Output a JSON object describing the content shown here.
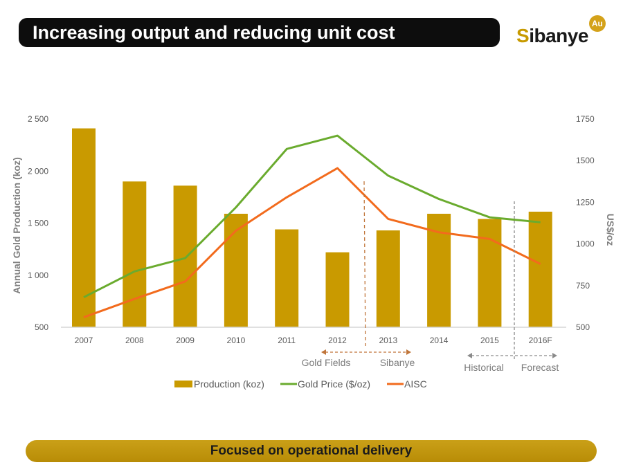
{
  "header": {
    "title": "Increasing output and reducing unit cost"
  },
  "logo": {
    "text": "Sibanye",
    "badge": "Au"
  },
  "footer": {
    "text": "Focused on operational delivery"
  },
  "colors": {
    "production": "#c99a00",
    "gold_price": "#6aab2e",
    "aisc": "#f26b1d",
    "title_bg": "#0d0d0d",
    "footer_bg": "#c19510"
  },
  "chart_data": {
    "type": "bar+line",
    "categories": [
      "2007",
      "2008",
      "2009",
      "2010",
      "2011",
      "2012",
      "2013",
      "2014",
      "2015",
      "2016F"
    ],
    "ylabel": "Annual Gold Production (koz)",
    "y2label": "US$/oz",
    "ylim": [
      500,
      2500
    ],
    "y2lim": [
      500,
      1750
    ],
    "yticks": [
      "500",
      "1 000",
      "1 500",
      "2 000",
      "2 500"
    ],
    "y2ticks": [
      "500",
      "750",
      "1000",
      "1250",
      "1500",
      "1750"
    ],
    "series": [
      {
        "name": "Production (koz)",
        "type": "bar",
        "axis": "left",
        "values": [
          2410,
          1900,
          1860,
          1590,
          1440,
          1220,
          1430,
          1590,
          1540,
          1610
        ]
      },
      {
        "name": "Gold Price ($/oz)",
        "type": "line",
        "axis": "right",
        "values": [
          680,
          835,
          915,
          1220,
          1570,
          1650,
          1410,
          1270,
          1160,
          1130
        ]
      },
      {
        "name": "AISC",
        "type": "line",
        "axis": "right",
        "values": [
          560,
          670,
          775,
          1080,
          1280,
          1455,
          1150,
          1070,
          1030,
          880
        ]
      }
    ],
    "legend": "bottom",
    "grid": false,
    "annotations": {
      "gold_fields": "Gold Fields",
      "sibanye": "Sibanye",
      "historical": "Historical",
      "forecast": "Forecast"
    }
  }
}
